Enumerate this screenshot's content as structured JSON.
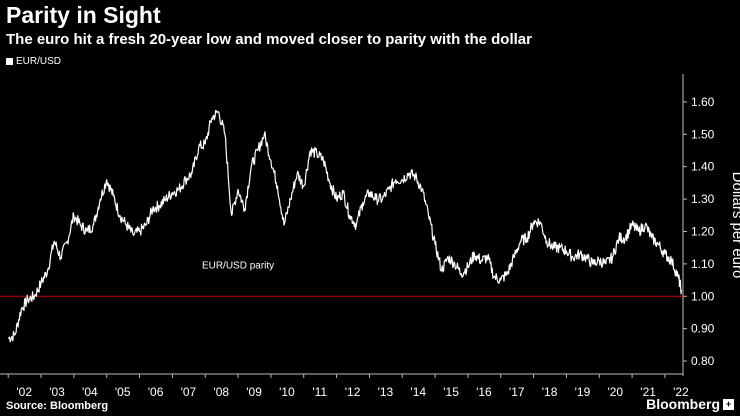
{
  "header": {
    "title": "Parity in Sight",
    "subtitle": "The euro hit a fresh 20-year low and moved closer to parity with the dollar"
  },
  "footer": {
    "source": "Source: Bloomberg",
    "brand": "Bloomberg",
    "brand_mark_icon": "plus-square-icon"
  },
  "colors": {
    "background": "#000000",
    "series": "#ffffff",
    "parity_line": "#cc0000",
    "axis_text": "#ffffff"
  },
  "chart_data": {
    "type": "line",
    "title": "Parity in Sight",
    "ylabel": "Dollars per euro",
    "xlabel": "",
    "ylim": [
      0.76,
      1.68
    ],
    "xlim": [
      2001.75,
      2022.55
    ],
    "grid": false,
    "legend_placement": "top-left",
    "x_tick_labels": [
      "'02",
      "'03",
      "'04",
      "'05",
      "'06",
      "'07",
      "'08",
      "'09",
      "'10",
      "'11",
      "'12",
      "'13",
      "'14",
      "'15",
      "'16",
      "'17",
      "'18",
      "'19",
      "'20",
      "'21",
      "'22"
    ],
    "x_tick_years": [
      2002,
      2003,
      2004,
      2005,
      2006,
      2007,
      2008,
      2009,
      2010,
      2011,
      2012,
      2013,
      2014,
      2015,
      2016,
      2017,
      2018,
      2019,
      2020,
      2021,
      2022
    ],
    "y_ticks": [
      0.8,
      0.9,
      1.0,
      1.1,
      1.2,
      1.3,
      1.4,
      1.5,
      1.6
    ],
    "y_tick_labels": [
      "0.80",
      "0.90",
      "1.00",
      "1.10",
      "1.20",
      "1.30",
      "1.40",
      "1.50",
      "1.60"
    ],
    "annotations": [
      {
        "text": "EUR/USD parity",
        "x": 2009.0,
        "y": 1.085,
        "ref_value": 1.0
      }
    ],
    "series": [
      {
        "name": "EUR/USD",
        "x": [
          2002.0,
          2002.2,
          2002.4,
          2002.6,
          2002.8,
          2003.0,
          2003.2,
          2003.4,
          2003.6,
          2003.8,
          2004.0,
          2004.2,
          2004.4,
          2004.6,
          2004.8,
          2005.0,
          2005.2,
          2005.4,
          2005.6,
          2005.8,
          2006.0,
          2006.2,
          2006.4,
          2006.6,
          2006.8,
          2007.0,
          2007.2,
          2007.4,
          2007.6,
          2007.8,
          2008.0,
          2008.2,
          2008.4,
          2008.6,
          2008.8,
          2009.0,
          2009.2,
          2009.4,
          2009.6,
          2009.8,
          2010.0,
          2010.2,
          2010.4,
          2010.6,
          2010.8,
          2011.0,
          2011.2,
          2011.4,
          2011.6,
          2011.8,
          2012.0,
          2012.2,
          2012.4,
          2012.6,
          2012.8,
          2013.0,
          2013.2,
          2013.4,
          2013.6,
          2013.8,
          2014.0,
          2014.2,
          2014.4,
          2014.6,
          2014.8,
          2015.0,
          2015.2,
          2015.4,
          2015.6,
          2015.8,
          2016.0,
          2016.2,
          2016.4,
          2016.6,
          2016.8,
          2017.0,
          2017.2,
          2017.4,
          2017.6,
          2017.8,
          2018.0,
          2018.2,
          2018.4,
          2018.6,
          2018.8,
          2019.0,
          2019.2,
          2019.4,
          2019.6,
          2019.8,
          2020.0,
          2020.2,
          2020.4,
          2020.6,
          2020.8,
          2021.0,
          2021.2,
          2021.4,
          2021.6,
          2021.8,
          2022.0,
          2022.2,
          2022.4,
          2022.5
        ],
        "y": [
          0.87,
          0.88,
          0.96,
          0.99,
          1.0,
          1.04,
          1.08,
          1.17,
          1.12,
          1.17,
          1.25,
          1.22,
          1.2,
          1.22,
          1.3,
          1.36,
          1.31,
          1.25,
          1.22,
          1.19,
          1.2,
          1.22,
          1.27,
          1.28,
          1.3,
          1.32,
          1.33,
          1.36,
          1.38,
          1.46,
          1.47,
          1.55,
          1.57,
          1.5,
          1.25,
          1.33,
          1.27,
          1.4,
          1.45,
          1.5,
          1.42,
          1.34,
          1.22,
          1.3,
          1.38,
          1.34,
          1.45,
          1.44,
          1.42,
          1.35,
          1.3,
          1.32,
          1.25,
          1.22,
          1.29,
          1.32,
          1.3,
          1.3,
          1.33,
          1.36,
          1.36,
          1.38,
          1.37,
          1.33,
          1.25,
          1.16,
          1.08,
          1.12,
          1.1,
          1.07,
          1.09,
          1.13,
          1.11,
          1.12,
          1.06,
          1.05,
          1.07,
          1.12,
          1.17,
          1.18,
          1.23,
          1.23,
          1.17,
          1.15,
          1.15,
          1.14,
          1.12,
          1.13,
          1.12,
          1.1,
          1.11,
          1.1,
          1.12,
          1.18,
          1.18,
          1.22,
          1.2,
          1.22,
          1.18,
          1.16,
          1.13,
          1.11,
          1.06,
          1.02
        ]
      }
    ]
  }
}
